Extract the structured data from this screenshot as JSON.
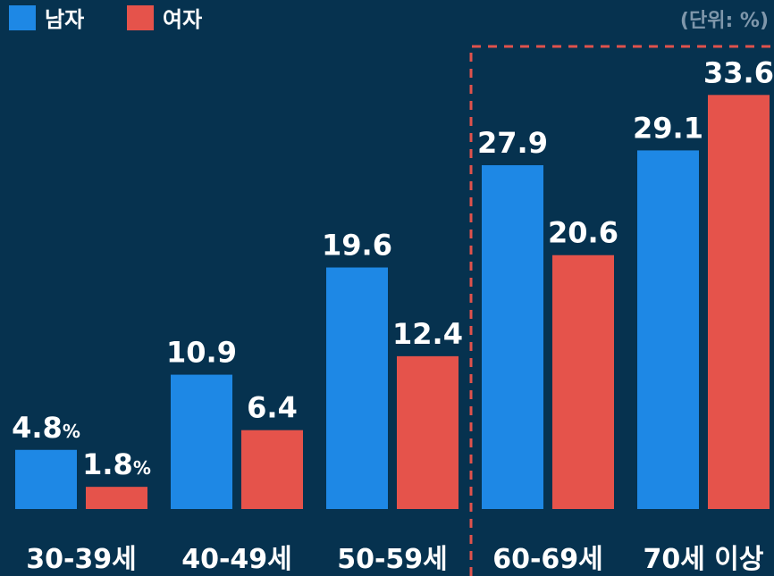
{
  "chart_data": {
    "type": "bar",
    "unit_note": "(단위: %)",
    "categories": [
      "30-39세",
      "40-49세",
      "50-59세",
      "60-69세",
      "70세 이상"
    ],
    "series": [
      {
        "name": "남자",
        "color": "#1e88e5",
        "values": [
          4.8,
          10.9,
          19.6,
          27.9,
          29.1
        ],
        "value_labels": [
          "4.8%",
          "10.9",
          "19.6",
          "27.9",
          "29.1"
        ]
      },
      {
        "name": "여자",
        "color": "#e5534b",
        "values": [
          1.8,
          6.4,
          12.4,
          20.6,
          33.6
        ],
        "value_labels": [
          "1.8%",
          "6.4",
          "12.4",
          "20.6",
          "33.6"
        ]
      }
    ],
    "ylim": [
      0,
      35
    ]
  }
}
